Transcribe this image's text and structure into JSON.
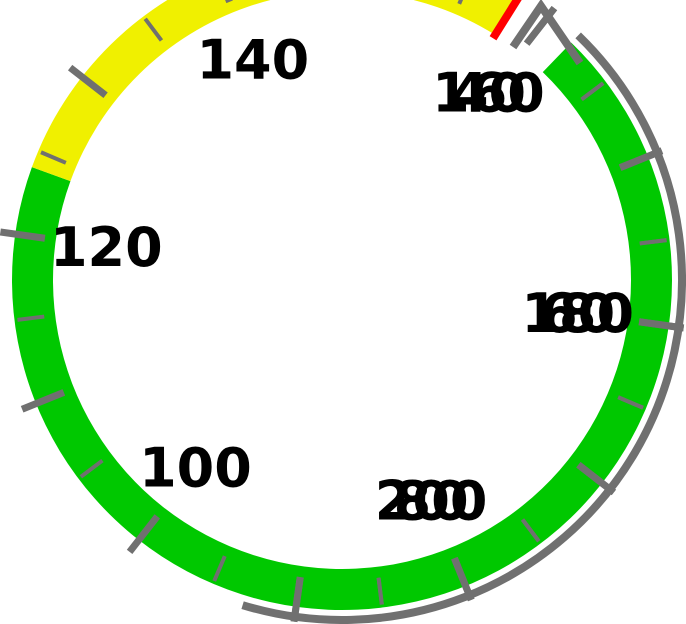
{
  "gauge": {
    "min": 40,
    "max": 210,
    "labels": [
      {
        "value": 40,
        "text": "40"
      },
      {
        "value": 60,
        "text": "60"
      },
      {
        "value": 80,
        "text": "80"
      },
      {
        "value": 100,
        "text": "100"
      },
      {
        "value": 120,
        "text": "120"
      },
      {
        "value": 140,
        "text": "140"
      },
      {
        "value": 160,
        "text": "160"
      },
      {
        "value": 180,
        "text": "180"
      },
      {
        "value": 200,
        "text": "200"
      }
    ],
    "bands": [
      {
        "from": 42,
        "to": 124,
        "color": "#00c800"
      },
      {
        "from": 124,
        "to": 158,
        "color": "#f0f000"
      }
    ],
    "marker": {
      "value": 158,
      "color": "#ff0000"
    },
    "colors": {
      "ticks": "#707070",
      "label": "#000000"
    }
  }
}
